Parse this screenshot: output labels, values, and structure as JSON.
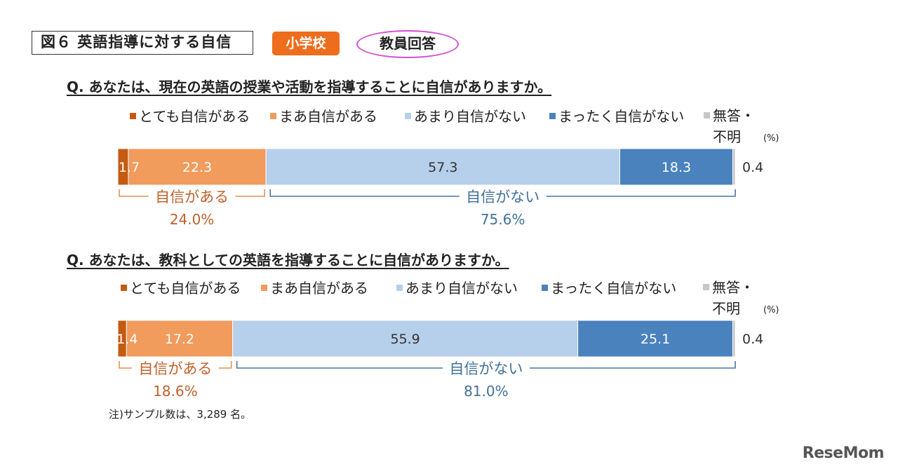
{
  "figure_label": "図６ 英語指導に対する自信",
  "school_badge": "小学校",
  "respondent_badge": "教員回答",
  "unit": "(%)",
  "note": "注)サンプル数は、3,289 名。",
  "logo": "ReseMom",
  "colors": {
    "very_confident": "#c55a11",
    "somewhat_confident": "#f19b5c",
    "not_very": "#b6cfeb",
    "not_at_all": "#4a82be",
    "no_answer": "#c6c6c6",
    "confident_bracket": "#e29255",
    "not_confident_bracket": "#4a76a5",
    "confident_text": "#c0612b",
    "not_confident_text": "#41719c"
  },
  "chart_data": [
    {
      "type": "bar",
      "orientation": "horizontal-stacked-100",
      "title": "Q. あなたは、現在の英語の授業や活動を指導することに自信がありますか。",
      "legend": [
        "とても自信がある",
        "まあ自信がある",
        "あまり自信がない",
        "まったく自信がない",
        "無答・不明"
      ],
      "legend_line1": "無答・",
      "legend_line2": "不明",
      "values": [
        1.7,
        22.3,
        57.3,
        18.3,
        0.4
      ],
      "labels": [
        "1.7",
        "22.3",
        "57.3",
        "18.3",
        "0.4"
      ],
      "groups": [
        {
          "label": "自信がある",
          "value": "24.0%"
        },
        {
          "label": "自信がない",
          "value": "75.6%"
        }
      ]
    },
    {
      "type": "bar",
      "orientation": "horizontal-stacked-100",
      "title": "Q. あなたは、教科としての英語を指導することに自信がありますか。",
      "legend": [
        "とても自信がある",
        "まあ自信がある",
        "あまり自信がない",
        "まったく自信がない",
        "無答・不明"
      ],
      "legend_line1": "無答・",
      "legend_line2": "不明",
      "values": [
        1.4,
        17.2,
        55.9,
        25.1,
        0.4
      ],
      "labels": [
        "1.4",
        "17.2",
        "55.9",
        "25.1",
        "0.4"
      ],
      "groups": [
        {
          "label": "自信がある",
          "value": "18.6%"
        },
        {
          "label": "自信がない",
          "value": "81.0%"
        }
      ]
    }
  ]
}
